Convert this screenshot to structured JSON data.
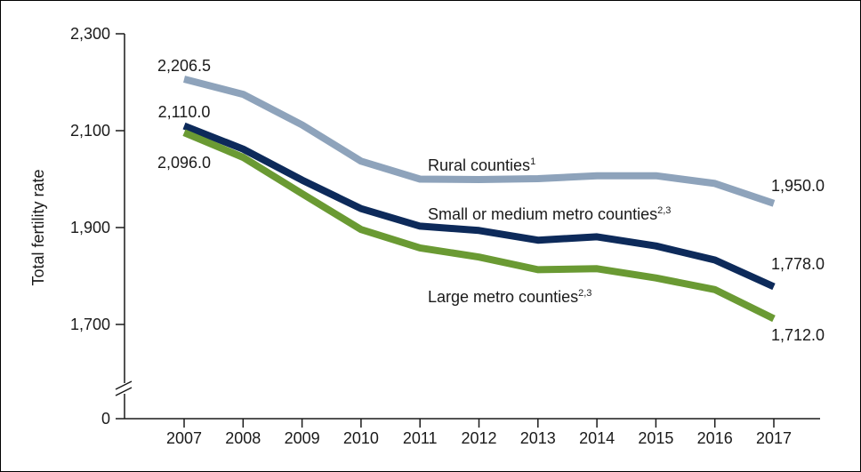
{
  "chart_data": {
    "type": "line",
    "title": "",
    "xlabel": "",
    "ylabel": "Total fertility rate",
    "x": [
      2007,
      2008,
      2009,
      2010,
      2011,
      2012,
      2013,
      2014,
      2015,
      2016,
      2017
    ],
    "y_ticks": [
      "0",
      "1,700",
      "1,900",
      "2,100",
      "2,300"
    ],
    "ylim": [
      1500,
      2300
    ],
    "axis_break": true,
    "grid": false,
    "series": [
      {
        "name": "Rural counties",
        "footnote": "1",
        "color": "#8ea3bb",
        "values": [
          2206.5,
          2175,
          2112,
          2037,
          2000,
          1999,
          2001,
          2007,
          2007,
          1991,
          1950.0
        ],
        "label_first": "2,206.5",
        "label_last": "1,950.0"
      },
      {
        "name": "Small or medium metro counties",
        "footnote": "2,3",
        "color": "#0d2a5a",
        "values": [
          2110.0,
          2062,
          1998,
          1939,
          1903,
          1894,
          1874,
          1881,
          1862,
          1833,
          1778.0
        ],
        "label_first": "2,110.0",
        "label_last": "1,778.0"
      },
      {
        "name": "Large metro counties",
        "footnote": "2,3",
        "color": "#6a9a33",
        "values": [
          2096.0,
          2045,
          1970,
          1896,
          1858,
          1839,
          1813,
          1815,
          1796,
          1772,
          1712.0
        ],
        "label_first": "2,096.0",
        "label_last": "1,712.0"
      }
    ]
  }
}
